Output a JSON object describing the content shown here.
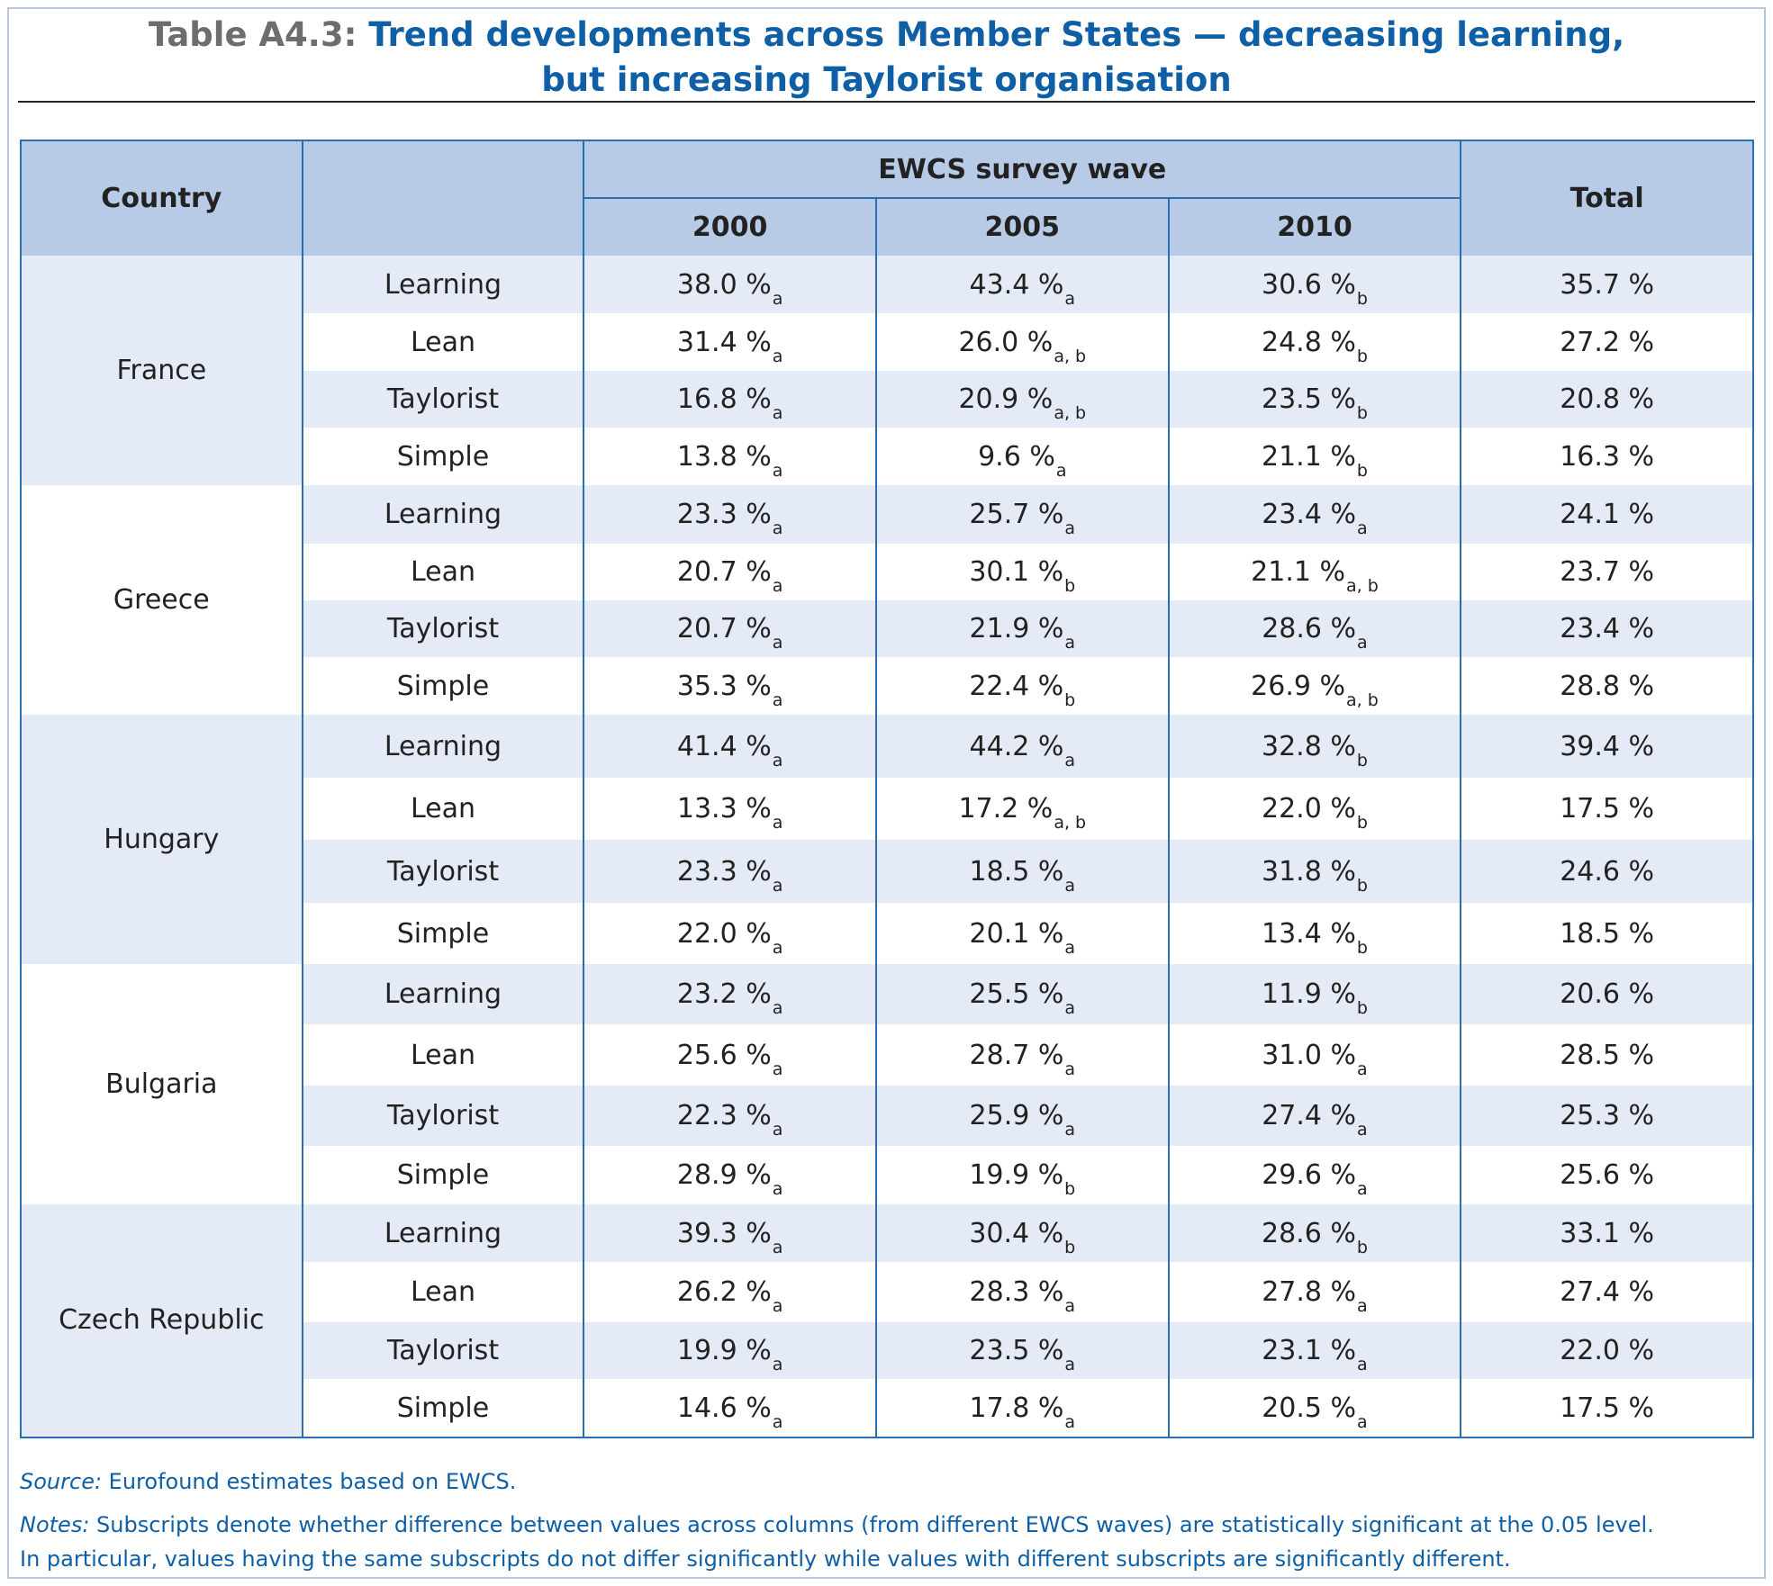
{
  "title": {
    "lead": "Table A4.3:",
    "line1": "Trend developments across Member States — decreasing learning,",
    "line2": "but increasing Taylorist organisation"
  },
  "header": {
    "country": "Country",
    "wave_group": "EWCS survey wave",
    "years": [
      "2000",
      "2005",
      "2010"
    ],
    "total": "Total"
  },
  "countries": [
    {
      "name": "France",
      "rows": [
        {
          "type": "Learning",
          "cells": [
            [
              "38.0 %",
              "a"
            ],
            [
              "43.4 %",
              "a"
            ],
            [
              "30.6 %",
              "b"
            ]
          ],
          "total": "35.7 %"
        },
        {
          "type": "Lean",
          "cells": [
            [
              "31.4 %",
              "a"
            ],
            [
              "26.0 %",
              "a, b"
            ],
            [
              "24.8 %",
              "b"
            ]
          ],
          "total": "27.2 %"
        },
        {
          "type": "Taylorist",
          "cells": [
            [
              "16.8 %",
              "a"
            ],
            [
              "20.9 %",
              "a, b"
            ],
            [
              "23.5 %",
              "b"
            ]
          ],
          "total": "20.8 %"
        },
        {
          "type": "Simple",
          "cells": [
            [
              "13.8 %",
              "a"
            ],
            [
              "9.6 %",
              "a"
            ],
            [
              "21.1 %",
              "b"
            ]
          ],
          "total": "16.3 %"
        }
      ]
    },
    {
      "name": "Greece",
      "rows": [
        {
          "type": "Learning",
          "cells": [
            [
              "23.3 %",
              "a"
            ],
            [
              "25.7 %",
              "a"
            ],
            [
              "23.4 %",
              "a"
            ]
          ],
          "total": "24.1 %"
        },
        {
          "type": "Lean",
          "cells": [
            [
              "20.7 %",
              "a"
            ],
            [
              "30.1 %",
              "b"
            ],
            [
              "21.1 %",
              "a, b"
            ]
          ],
          "total": "23.7 %"
        },
        {
          "type": "Taylorist",
          "cells": [
            [
              "20.7 %",
              "a"
            ],
            [
              "21.9 %",
              "a"
            ],
            [
              "28.6 %",
              "a"
            ]
          ],
          "total": "23.4 %"
        },
        {
          "type": "Simple",
          "cells": [
            [
              "35.3 %",
              "a"
            ],
            [
              "22.4 %",
              "b"
            ],
            [
              "26.9 %",
              "a, b"
            ]
          ],
          "total": "28.8 %"
        }
      ]
    },
    {
      "name": "Hungary",
      "rows": [
        {
          "type": "Learning",
          "cells": [
            [
              "41.4 %",
              "a"
            ],
            [
              "44.2 %",
              "a"
            ],
            [
              "32.8 %",
              "b"
            ]
          ],
          "total": "39.4 %"
        },
        {
          "type": "Lean",
          "cells": [
            [
              "13.3 %",
              "a"
            ],
            [
              "17.2 %",
              "a, b"
            ],
            [
              "22.0 %",
              "b"
            ]
          ],
          "total": "17.5 %"
        },
        {
          "type": "Taylorist",
          "cells": [
            [
              "23.3 %",
              "a"
            ],
            [
              "18.5 %",
              "a"
            ],
            [
              "31.8 %",
              "b"
            ]
          ],
          "total": "24.6 %"
        },
        {
          "type": "Simple",
          "cells": [
            [
              "22.0 %",
              "a"
            ],
            [
              "20.1 %",
              "a"
            ],
            [
              "13.4 %",
              "b"
            ]
          ],
          "total": "18.5 %"
        }
      ]
    },
    {
      "name": "Bulgaria",
      "rows": [
        {
          "type": "Learning",
          "cells": [
            [
              "23.2 %",
              "a"
            ],
            [
              "25.5 %",
              "a"
            ],
            [
              "11.9 %",
              "b"
            ]
          ],
          "total": "20.6 %"
        },
        {
          "type": "Lean",
          "cells": [
            [
              "25.6 %",
              "a"
            ],
            [
              "28.7 %",
              "a"
            ],
            [
              "31.0 %",
              "a"
            ]
          ],
          "total": "28.5 %"
        },
        {
          "type": "Taylorist",
          "cells": [
            [
              "22.3 %",
              "a"
            ],
            [
              "25.9 %",
              "a"
            ],
            [
              "27.4 %",
              "a"
            ]
          ],
          "total": "25.3 %"
        },
        {
          "type": "Simple",
          "cells": [
            [
              "28.9 %",
              "a"
            ],
            [
              "19.9 %",
              "b"
            ],
            [
              "29.6 %",
              "a"
            ]
          ],
          "total": "25.6 %"
        }
      ]
    },
    {
      "name": "Czech Republic",
      "rows": [
        {
          "type": "Learning",
          "cells": [
            [
              "39.3 %",
              "a"
            ],
            [
              "30.4 %",
              "b"
            ],
            [
              "28.6 %",
              "b"
            ]
          ],
          "total": "33.1 %"
        },
        {
          "type": "Lean",
          "cells": [
            [
              "26.2 %",
              "a"
            ],
            [
              "28.3 %",
              "a"
            ],
            [
              "27.8 %",
              "a"
            ]
          ],
          "total": "27.4 %"
        },
        {
          "type": "Taylorist",
          "cells": [
            [
              "19.9 %",
              "a"
            ],
            [
              "23.5 %",
              "a"
            ],
            [
              "23.1 %",
              "a"
            ]
          ],
          "total": "22.0 %"
        },
        {
          "type": "Simple",
          "cells": [
            [
              "14.6 %",
              "a"
            ],
            [
              "17.8 %",
              "a"
            ],
            [
              "20.5 %",
              "a"
            ]
          ],
          "total": "17.5 %"
        }
      ]
    }
  ],
  "source": {
    "label": "Source:",
    "text": " Eurofound estimates based on EWCS."
  },
  "notes": {
    "label": "Notes:",
    "line1": " Subscripts denote whether difference between values across columns (from different EWCS waves) are statistically significant at the 0.05 level.",
    "line2": "In particular, values having the same subscripts do not differ significantly while values with different subscripts are significantly different."
  }
}
